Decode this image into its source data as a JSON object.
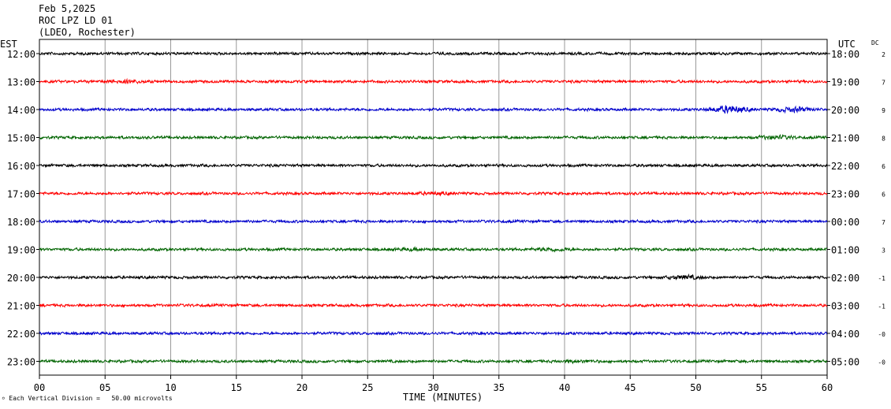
{
  "header": {
    "date": "Feb 5,2025",
    "station": "ROC LPZ LD 01",
    "network": "(LDEO, Rochester)"
  },
  "footer": {
    "scale_note": "Each Vertical Division =   50.00 microvolts"
  },
  "chart_data": {
    "type": "line",
    "title": "",
    "xlabel": "TIME (MINUTES)",
    "left_axis_label": "EST",
    "right_axis_label": "UTC",
    "dc_label": "DC",
    "xlim": [
      0,
      60
    ],
    "x_ticks": [
      0,
      5,
      10,
      15,
      20,
      25,
      30,
      35,
      40,
      45,
      50,
      55,
      60
    ],
    "x_tick_labels": [
      "00",
      "05",
      "10",
      "15",
      "20",
      "25",
      "30",
      "35",
      "40",
      "45",
      "50",
      "55",
      "60"
    ],
    "grid": true,
    "trace_colors": [
      "#000000",
      "#ff0000",
      "#0000cc",
      "#006400"
    ],
    "rows": [
      {
        "est": "12:00",
        "utc": "18:00",
        "dc": "2"
      },
      {
        "est": "13:00",
        "utc": "19:00",
        "dc": "7"
      },
      {
        "est": "14:00",
        "utc": "20:00",
        "dc": "9"
      },
      {
        "est": "15:00",
        "utc": "21:00",
        "dc": "8"
      },
      {
        "est": "16:00",
        "utc": "22:00",
        "dc": "6"
      },
      {
        "est": "17:00",
        "utc": "23:00",
        "dc": "6"
      },
      {
        "est": "18:00",
        "utc": "00:00",
        "dc": "7"
      },
      {
        "est": "19:00",
        "utc": "01:00",
        "dc": "3"
      },
      {
        "est": "20:00",
        "utc": "02:00",
        "dc": "-1"
      },
      {
        "est": "21:00",
        "utc": "03:00",
        "dc": "-1"
      },
      {
        "est": "22:00",
        "utc": "04:00",
        "dc": "-0"
      },
      {
        "est": "23:00",
        "utc": "05:00",
        "dc": "-0"
      }
    ],
    "bursts": [
      [],
      [
        {
          "t": 6.5,
          "amp": 1.8
        }
      ],
      [
        {
          "t": 52.5,
          "amp": 3.5
        },
        {
          "t": 57.5,
          "amp": 2.5
        }
      ],
      [
        {
          "t": 56.0,
          "amp": 2.0
        }
      ],
      [],
      [
        {
          "t": 30.0,
          "amp": 1.6
        }
      ],
      [],
      [
        {
          "t": 39.0,
          "amp": 1.8
        },
        {
          "t": 28.5,
          "amp": 1.5
        }
      ],
      [
        {
          "t": 49.0,
          "amp": 2.2
        }
      ],
      [],
      [],
      [
        {
          "t": 41.0,
          "amp": 1.6
        }
      ]
    ]
  }
}
